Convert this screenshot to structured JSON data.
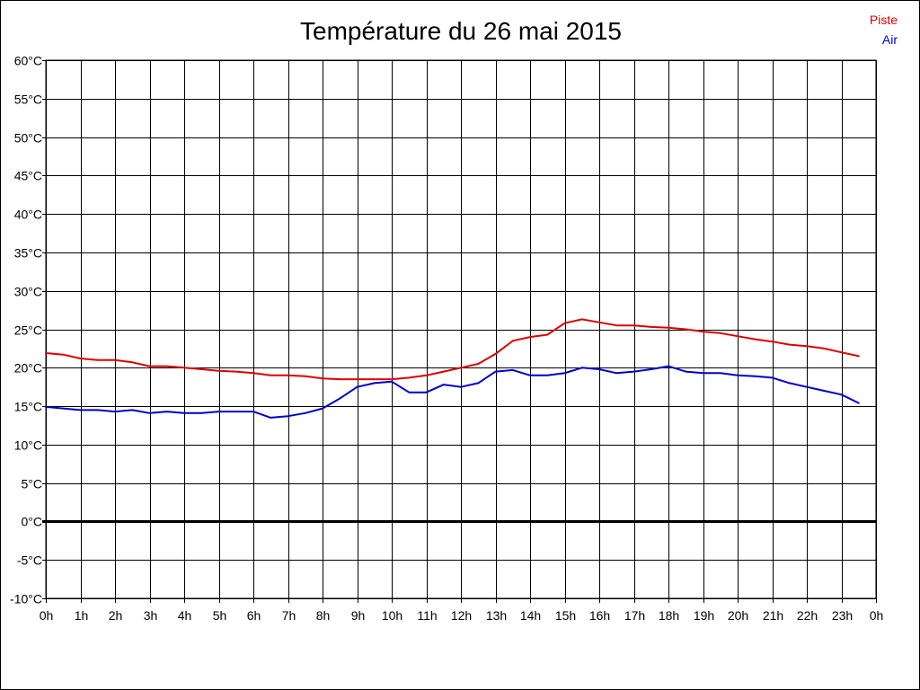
{
  "chart_data": {
    "type": "line",
    "title": "Température du 26 mai 2015",
    "xlabel": "",
    "ylabel": "",
    "x_ticks": [
      "0h",
      "1h",
      "2h",
      "3h",
      "4h",
      "5h",
      "6h",
      "7h",
      "8h",
      "9h",
      "10h",
      "11h",
      "12h",
      "13h",
      "14h",
      "15h",
      "16h",
      "17h",
      "18h",
      "19h",
      "20h",
      "21h",
      "22h",
      "23h",
      "0h"
    ],
    "y_ticks": [
      "60°C",
      "55°C",
      "50°C",
      "45°C",
      "40°C",
      "35°C",
      "30°C",
      "25°C",
      "20°C",
      "15°C",
      "10°C",
      "5°C",
      "0°C",
      "-5°C",
      "-10°C"
    ],
    "xlim": [
      0,
      24
    ],
    "ylim": [
      -10,
      60
    ],
    "grid": true,
    "legend_position": "top-right",
    "series": [
      {
        "name": "Piste",
        "color": "#dd0000",
        "x": [
          0,
          0.5,
          1,
          1.5,
          2,
          2.5,
          3,
          3.5,
          4,
          4.5,
          5,
          5.5,
          6,
          6.5,
          7,
          7.5,
          8,
          8.5,
          9,
          9.5,
          10,
          10.5,
          11,
          11.5,
          12,
          12.5,
          13,
          13.5,
          14,
          14.5,
          15,
          15.5,
          16,
          16.5,
          17,
          17.5,
          18,
          18.5,
          19,
          19.5,
          20,
          20.5,
          21,
          21.5,
          22,
          22.5,
          23,
          23.5
        ],
        "values": [
          21.9,
          21.7,
          21.2,
          21.0,
          21.0,
          20.7,
          20.2,
          20.2,
          20.0,
          19.8,
          19.6,
          19.5,
          19.3,
          19.0,
          19.0,
          18.9,
          18.6,
          18.5,
          18.5,
          18.5,
          18.5,
          18.7,
          19.0,
          19.5,
          20.0,
          20.5,
          21.8,
          23.5,
          24.0,
          24.3,
          25.8,
          26.3,
          25.9,
          25.5,
          25.5,
          25.3,
          25.2,
          25.0,
          24.7,
          24.5,
          24.1,
          23.7,
          23.4,
          23.0,
          22.8,
          22.5,
          22.0,
          21.5
        ]
      },
      {
        "name": "Air",
        "color": "#0000cc",
        "x": [
          0,
          0.5,
          1,
          1.5,
          2,
          2.5,
          3,
          3.5,
          4,
          4.5,
          5,
          5.5,
          6,
          6.5,
          7,
          7.5,
          8,
          8.5,
          9,
          9.5,
          10,
          10.5,
          11,
          11.5,
          12,
          12.5,
          13,
          13.5,
          14,
          14.5,
          15,
          15.5,
          16,
          16.5,
          17,
          17.5,
          18,
          18.5,
          19,
          19.5,
          20,
          20.5,
          21,
          21.5,
          22,
          22.5,
          23,
          23.5
        ],
        "values": [
          14.9,
          14.7,
          14.5,
          14.5,
          14.3,
          14.5,
          14.1,
          14.3,
          14.1,
          14.1,
          14.3,
          14.3,
          14.3,
          13.5,
          13.7,
          14.1,
          14.7,
          16.0,
          17.5,
          18.0,
          18.2,
          16.8,
          16.8,
          17.8,
          17.5,
          18.0,
          19.5,
          19.7,
          19.0,
          19.0,
          19.3,
          20.0,
          19.8,
          19.3,
          19.5,
          19.8,
          20.2,
          19.5,
          19.3,
          19.3,
          19.0,
          18.9,
          18.7,
          18.0,
          17.5,
          17.0,
          16.5,
          15.4
        ]
      }
    ]
  }
}
